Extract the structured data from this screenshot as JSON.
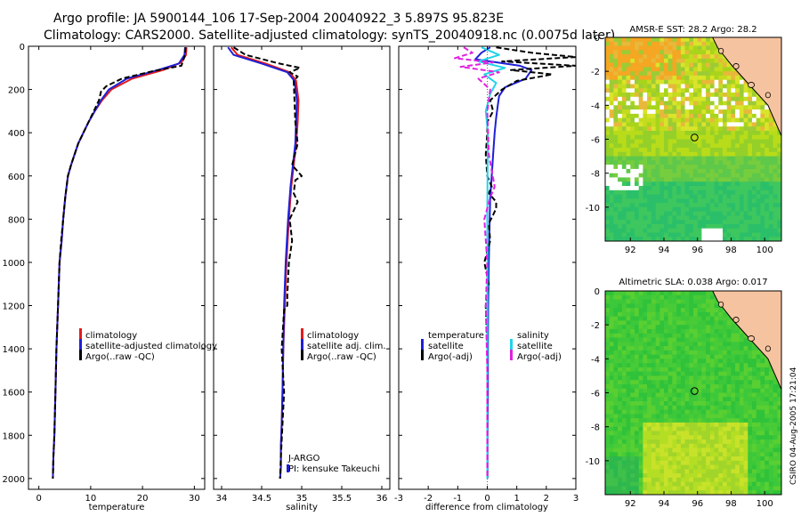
{
  "header": {
    "line1": "Argo profile: JA 5900144_106 17-Sep-2004 20040922_3 5.897S 95.823E",
    "line2": "Climatology: CARS2000. Satellite-adjusted climatology: synTS_20040918.nc (0.0075d later)"
  },
  "credits": "CSIRO 04-Aug-2005 17:21:04",
  "colors": {
    "red": "#e41a1c",
    "blue": "#1f1fd6",
    "black": "#000000",
    "cyan": "#22d3e8",
    "magenta": "#e020e0",
    "land": "#f6c3a0"
  },
  "chart_data": [
    {
      "type": "line",
      "title": "",
      "xlabel": "temperature",
      "ylabel": "",
      "xlim": [
        -2,
        32
      ],
      "ylim": [
        2050,
        0
      ],
      "xticks": [
        0,
        10,
        20,
        30
      ],
      "yticks": [
        0,
        200,
        400,
        600,
        800,
        1000,
        1200,
        1400,
        1600,
        1800,
        2000
      ],
      "legend": [
        "climatology",
        "satellite-adjusted climatology",
        "Argo(..raw -QC)"
      ],
      "series": [
        {
          "name": "climatology",
          "color": "red",
          "x": [
            28.5,
            28.4,
            27.5,
            24,
            18,
            14,
            12.2,
            10.8,
            9.6,
            8.6,
            7.6,
            6.9,
            6.2,
            5.6,
            5.1,
            4.7,
            4.4,
            4.0,
            3.7,
            3.4,
            3.2,
            3.0,
            2.8,
            2.7
          ],
          "y": [
            5,
            40,
            75,
            110,
            150,
            200,
            250,
            300,
            350,
            400,
            450,
            500,
            550,
            600,
            700,
            800,
            900,
            1000,
            1200,
            1400,
            1600,
            1800,
            1900,
            2000
          ]
        },
        {
          "name": "satellite-adjusted climatology",
          "color": "blue",
          "x": [
            28.2,
            28.1,
            27,
            23,
            17,
            13.5,
            12,
            10.8,
            9.6,
            8.6,
            7.6,
            6.9,
            6.2,
            5.6,
            5.1,
            4.7,
            4.4,
            4.0,
            3.7,
            3.4,
            3.2,
            3.0,
            2.8,
            2.7
          ],
          "y": [
            5,
            40,
            80,
            110,
            150,
            200,
            250,
            300,
            350,
            400,
            450,
            500,
            550,
            600,
            700,
            800,
            900,
            1000,
            1200,
            1400,
            1600,
            1800,
            1900,
            2000
          ]
        },
        {
          "name": "Argo(..raw -QC)",
          "color": "black",
          "x": [
            28.3,
            28.2,
            27.8,
            27.5,
            22,
            16,
            13,
            12.0,
            11.6,
            10.6,
            9.6,
            8.6,
            7.6,
            6.9,
            6.2,
            5.6,
            5.1,
            4.7,
            4.3,
            4.0,
            3.7,
            3.4,
            3.2,
            3.0,
            2.8,
            2.7
          ],
          "y": [
            5,
            40,
            70,
            90,
            115,
            150,
            185,
            210,
            250,
            300,
            350,
            400,
            450,
            500,
            550,
            600,
            700,
            800,
            900,
            1000,
            1200,
            1400,
            1600,
            1800,
            1900,
            2000
          ]
        }
      ]
    },
    {
      "type": "line",
      "xlabel": "salinity",
      "xlim": [
        33.9,
        36.1
      ],
      "ylim": [
        2050,
        0
      ],
      "xticks": [
        34,
        34.5,
        35,
        35.5,
        36
      ],
      "legend": [
        "climatology",
        "satellite adj. clim.",
        "Argo(..raw -QC)"
      ],
      "annotations": [
        "J-ARGO",
        "PI: kensuke Takeuchi"
      ],
      "series": [
        {
          "name": "climatology",
          "color": "red",
          "x": [
            34.12,
            34.2,
            34.55,
            34.85,
            34.93,
            34.96,
            34.95,
            34.93,
            34.9,
            34.87,
            34.84,
            34.81,
            34.79,
            34.77,
            34.76,
            34.75,
            34.74,
            34.74,
            34.73
          ],
          "y": [
            5,
            40,
            80,
            120,
            160,
            250,
            350,
            450,
            550,
            650,
            800,
            1000,
            1200,
            1400,
            1600,
            1750,
            1850,
            1950,
            2000
          ]
        },
        {
          "name": "satellite adj. clim.",
          "color": "blue",
          "x": [
            34.08,
            34.15,
            34.5,
            34.82,
            34.91,
            34.94,
            34.93,
            34.92,
            34.89,
            34.86,
            34.83,
            34.8,
            34.78,
            34.77,
            34.76,
            34.75,
            34.74,
            34.74,
            34.73
          ],
          "y": [
            5,
            40,
            80,
            120,
            160,
            250,
            350,
            450,
            550,
            650,
            800,
            1000,
            1200,
            1400,
            1600,
            1750,
            1850,
            1950,
            2000
          ]
        },
        {
          "name": "Argo(..raw -QC)",
          "color": "black",
          "x": [
            34.15,
            34.3,
            34.72,
            34.98,
            34.85,
            34.95,
            34.9,
            34.91,
            34.92,
            34.95,
            34.88,
            35.0,
            34.92,
            34.9,
            34.95,
            34.85,
            34.88,
            34.84,
            34.82,
            34.82,
            34.78,
            34.75,
            34.78,
            34.76,
            34.74,
            34.73
          ],
          "y": [
            5,
            40,
            80,
            100,
            120,
            140,
            160,
            250,
            350,
            450,
            550,
            600,
            620,
            680,
            720,
            800,
            900,
            1000,
            1150,
            1200,
            1220,
            1400,
            1600,
            1750,
            1900,
            2000
          ]
        }
      ]
    },
    {
      "type": "line",
      "xlabel": "difference from climatology",
      "xlim": [
        -3,
        3
      ],
      "ylim": [
        2050,
        0
      ],
      "xticks": [
        -3,
        -2,
        -1,
        0,
        1,
        2,
        3
      ],
      "legend": [
        "temperature",
        "satellite",
        "Argo(-adj)",
        "salinity",
        "satellite",
        "Argo(-adj)"
      ],
      "series": [
        {
          "name": "temperature satellite",
          "color": "blue",
          "x": [
            0.1,
            -0.2,
            -0.4,
            1.1,
            1.5,
            1.3,
            0.6,
            0.4,
            0.35,
            0.3,
            0.25,
            0.2,
            0.15,
            0.1,
            0.08,
            0.05,
            0.03,
            0.02,
            0.02,
            0.01,
            0.01
          ],
          "y": [
            5,
            30,
            60,
            90,
            110,
            150,
            190,
            230,
            280,
            330,
            400,
            500,
            600,
            700,
            800,
            1000,
            1200,
            1400,
            1600,
            1800,
            2000
          ]
        },
        {
          "name": "temperature Argo(-adj)",
          "color": "black",
          "x": [
            0.3,
            1.5,
            3.0,
            0.5,
            3.0,
            0.8,
            2.2,
            1.0,
            0.5,
            0.1,
            0.2,
            0.0,
            0.0,
            -0.05,
            0.0,
            0.15,
            0.05,
            0.3,
            0.3,
            0.2,
            0.05,
            0.1,
            -0.1,
            0.05,
            -0.05,
            0.0,
            0.0,
            0.0
          ],
          "y": [
            5,
            30,
            50,
            70,
            90,
            110,
            130,
            160,
            200,
            250,
            300,
            350,
            400,
            500,
            600,
            650,
            680,
            720,
            750,
            780,
            820,
            900,
            1000,
            1100,
            1200,
            1400,
            1700,
            2000
          ]
        },
        {
          "name": "salinity satellite",
          "color": "cyan",
          "x": [
            -0.2,
            0.4,
            -0.3,
            0.6,
            -0.1,
            0.3,
            0.1,
            -0.05,
            0.02,
            0.01,
            0.0,
            0.01,
            0.0,
            0.0,
            0.0,
            0.0
          ],
          "y": [
            5,
            40,
            70,
            100,
            130,
            170,
            220,
            300,
            400,
            600,
            800,
            1000,
            1200,
            1500,
            1800,
            2000
          ]
        },
        {
          "name": "salinity Argo(-adj)",
          "color": "magenta",
          "x": [
            -0.8,
            -0.5,
            -1.1,
            0.2,
            -0.9,
            0.4,
            -0.3,
            0.1,
            0.0,
            0.05,
            0.25,
            0.1,
            -0.1,
            0.0,
            -0.05,
            0.0,
            0.0
          ],
          "y": [
            5,
            30,
            55,
            75,
            95,
            120,
            150,
            200,
            300,
            500,
            650,
            700,
            800,
            1000,
            1200,
            1500,
            2000
          ]
        }
      ]
    },
    {
      "type": "heatmap",
      "title": "AMSR-E SST: 28.2 Argo: 28.2",
      "xlim": [
        90.5,
        101
      ],
      "ylim": [
        -12,
        0
      ],
      "xticks": [
        92,
        94,
        96,
        98,
        100
      ],
      "yticks": [
        0,
        -2,
        -4,
        -6,
        -8,
        -10
      ],
      "marker": {
        "lon": 95.823,
        "lat": -5.897
      }
    },
    {
      "type": "heatmap",
      "title": "Altimetric SLA: 0.038 Argo: 0.017",
      "xlim": [
        90.5,
        101
      ],
      "ylim": [
        -12,
        0
      ],
      "xticks": [
        92,
        94,
        96,
        98,
        100
      ],
      "yticks": [
        0,
        -2,
        -4,
        -6,
        -8,
        -10
      ],
      "marker": {
        "lon": 95.823,
        "lat": -5.897
      }
    }
  ]
}
